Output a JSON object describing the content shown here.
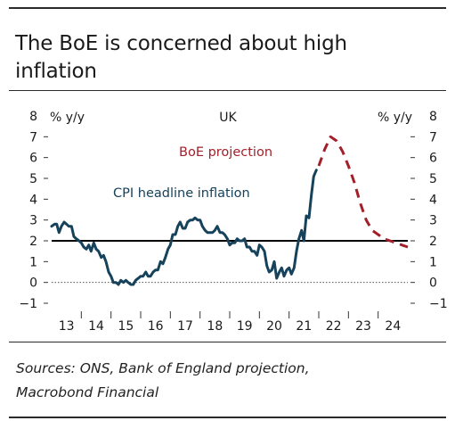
{
  "title": "The BoE is concerned about high inflation",
  "source": [
    "Sources: ONS, Bank of England projection,",
    "Macrobond Financial"
  ],
  "chart_data": {
    "type": "line",
    "region_label": "UK",
    "ylabel_left": "% y/y",
    "ylabel_right": "% y/y",
    "ylim": [
      -1,
      8
    ],
    "yticks": [
      -1,
      0,
      1,
      2,
      3,
      4,
      5,
      6,
      7,
      8
    ],
    "ytick_labels": [
      "−1",
      "0",
      "1",
      "2",
      "3",
      "4",
      "5",
      "6",
      "7",
      "8"
    ],
    "xlim": [
      2013.0,
      2025.0
    ],
    "xticks": [
      "13",
      "14",
      "15",
      "16",
      "17",
      "18",
      "19",
      "20",
      "21",
      "22",
      "23",
      "24"
    ],
    "grid": false,
    "reference_lines": [
      {
        "y": 2,
        "style": "solid",
        "color": "#000000"
      },
      {
        "y": 0,
        "style": "dotted",
        "color": "#555555"
      }
    ],
    "series": [
      {
        "name": "CPI headline inflation",
        "color": "#16425b",
        "style": "solid",
        "points": [
          [
            2013.0,
            2.7
          ],
          [
            2013.1,
            2.8
          ],
          [
            2013.17,
            2.8
          ],
          [
            2013.25,
            2.4
          ],
          [
            2013.33,
            2.7
          ],
          [
            2013.42,
            2.9
          ],
          [
            2013.5,
            2.8
          ],
          [
            2013.58,
            2.7
          ],
          [
            2013.67,
            2.7
          ],
          [
            2013.75,
            2.2
          ],
          [
            2013.83,
            2.1
          ],
          [
            2013.92,
            2.0
          ],
          [
            2014.0,
            1.9
          ],
          [
            2014.08,
            1.7
          ],
          [
            2014.17,
            1.6
          ],
          [
            2014.25,
            1.8
          ],
          [
            2014.33,
            1.5
          ],
          [
            2014.42,
            1.9
          ],
          [
            2014.5,
            1.6
          ],
          [
            2014.58,
            1.5
          ],
          [
            2014.67,
            1.2
          ],
          [
            2014.75,
            1.3
          ],
          [
            2014.83,
            1.0
          ],
          [
            2014.92,
            0.5
          ],
          [
            2015.0,
            0.3
          ],
          [
            2015.08,
            0.0
          ],
          [
            2015.17,
            0.0
          ],
          [
            2015.25,
            -0.1
          ],
          [
            2015.33,
            0.1
          ],
          [
            2015.42,
            0.0
          ],
          [
            2015.5,
            0.1
          ],
          [
            2015.58,
            0.0
          ],
          [
            2015.67,
            -0.1
          ],
          [
            2015.75,
            -0.1
          ],
          [
            2015.83,
            0.1
          ],
          [
            2015.92,
            0.2
          ],
          [
            2016.0,
            0.3
          ],
          [
            2016.08,
            0.3
          ],
          [
            2016.17,
            0.5
          ],
          [
            2016.25,
            0.3
          ],
          [
            2016.33,
            0.3
          ],
          [
            2016.42,
            0.5
          ],
          [
            2016.5,
            0.6
          ],
          [
            2016.58,
            0.6
          ],
          [
            2016.67,
            1.0
          ],
          [
            2016.75,
            0.9
          ],
          [
            2016.83,
            1.2
          ],
          [
            2016.92,
            1.6
          ],
          [
            2017.0,
            1.8
          ],
          [
            2017.08,
            2.3
          ],
          [
            2017.17,
            2.3
          ],
          [
            2017.25,
            2.7
          ],
          [
            2017.33,
            2.9
          ],
          [
            2017.42,
            2.6
          ],
          [
            2017.5,
            2.6
          ],
          [
            2017.58,
            2.9
          ],
          [
            2017.67,
            3.0
          ],
          [
            2017.75,
            3.0
          ],
          [
            2017.83,
            3.1
          ],
          [
            2017.92,
            3.0
          ],
          [
            2018.0,
            3.0
          ],
          [
            2018.08,
            2.7
          ],
          [
            2018.17,
            2.5
          ],
          [
            2018.25,
            2.4
          ],
          [
            2018.33,
            2.4
          ],
          [
            2018.42,
            2.4
          ],
          [
            2018.5,
            2.5
          ],
          [
            2018.58,
            2.7
          ],
          [
            2018.67,
            2.4
          ],
          [
            2018.75,
            2.4
          ],
          [
            2018.83,
            2.3
          ],
          [
            2018.92,
            2.1
          ],
          [
            2019.0,
            1.8
          ],
          [
            2019.08,
            1.9
          ],
          [
            2019.17,
            1.9
          ],
          [
            2019.25,
            2.1
          ],
          [
            2019.33,
            2.0
          ],
          [
            2019.42,
            2.0
          ],
          [
            2019.5,
            2.1
          ],
          [
            2019.58,
            1.7
          ],
          [
            2019.67,
            1.7
          ],
          [
            2019.75,
            1.5
          ],
          [
            2019.83,
            1.5
          ],
          [
            2019.92,
            1.3
          ],
          [
            2020.0,
            1.8
          ],
          [
            2020.08,
            1.7
          ],
          [
            2020.17,
            1.5
          ],
          [
            2020.25,
            0.8
          ],
          [
            2020.33,
            0.5
          ],
          [
            2020.42,
            0.6
          ],
          [
            2020.5,
            1.0
          ],
          [
            2020.58,
            0.2
          ],
          [
            2020.67,
            0.5
          ],
          [
            2020.75,
            0.7
          ],
          [
            2020.83,
            0.3
          ],
          [
            2020.92,
            0.6
          ],
          [
            2021.0,
            0.7
          ],
          [
            2021.08,
            0.4
          ],
          [
            2021.17,
            0.7
          ],
          [
            2021.25,
            1.5
          ],
          [
            2021.33,
            2.1
          ],
          [
            2021.42,
            2.5
          ],
          [
            2021.5,
            2.0
          ],
          [
            2021.58,
            3.2
          ],
          [
            2021.67,
            3.1
          ],
          [
            2021.75,
            4.2
          ],
          [
            2021.83,
            5.1
          ],
          [
            2021.92,
            5.4
          ]
        ]
      },
      {
        "name": "BoE projection",
        "color": "#a3202a",
        "style": "dashed",
        "points": [
          [
            2022.0,
            5.6
          ],
          [
            2022.2,
            6.4
          ],
          [
            2022.4,
            7.0
          ],
          [
            2022.6,
            6.8
          ],
          [
            2022.8,
            6.3
          ],
          [
            2023.0,
            5.6
          ],
          [
            2023.2,
            4.8
          ],
          [
            2023.4,
            3.8
          ],
          [
            2023.6,
            3.0
          ],
          [
            2023.8,
            2.5
          ],
          [
            2024.0,
            2.3
          ],
          [
            2024.2,
            2.1
          ],
          [
            2024.4,
            2.0
          ],
          [
            2024.6,
            1.9
          ],
          [
            2024.8,
            1.8
          ],
          [
            2025.0,
            1.7
          ]
        ]
      }
    ]
  }
}
